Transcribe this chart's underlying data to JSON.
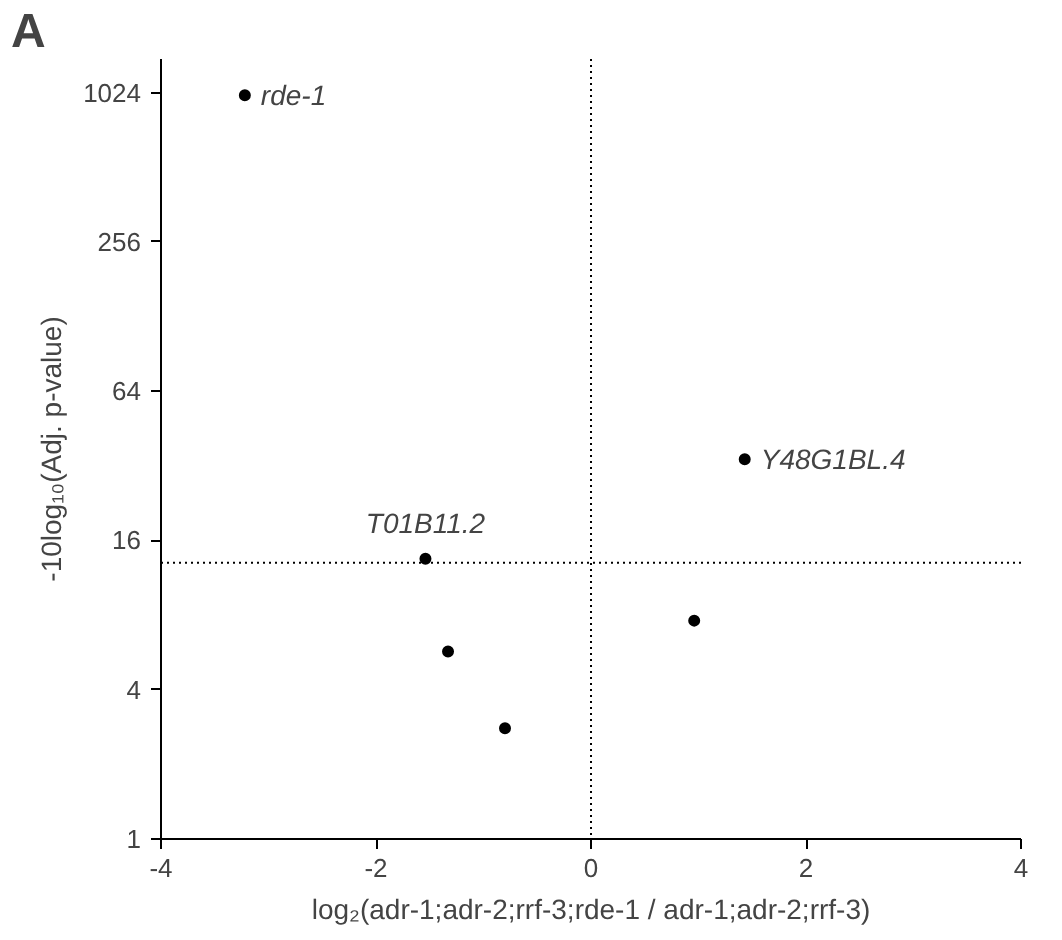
{
  "chart_data": {
    "type": "scatter",
    "xlabel": "log₂(adr-1;adr-2;rrf-3;rde-1 / adr-1;adr-2;rrf-3)",
    "ylabel": "-10log₁₀(Adj. p-value)",
    "x": [
      -3.22,
      1.43,
      -1.54,
      -1.33,
      -0.8,
      0.96
    ],
    "series": [
      {
        "color": "#000000",
        "values": [
          1000,
          34,
          13.5,
          5.7,
          2.8,
          7.6
        ]
      }
    ],
    "log": "y",
    "xlim": [
      -4,
      4
    ],
    "ylim": [
      1,
      1400
    ],
    "xticks": [
      -4,
      -2,
      0,
      2,
      4
    ],
    "yticks": [
      1,
      4,
      16,
      64,
      256,
      1024
    ],
    "grid": false,
    "marker": "circle",
    "ref_lines": [
      {
        "axis": "x",
        "value": 0,
        "line_style": "dotted"
      },
      {
        "axis": "y",
        "value": 13,
        "line_style": "dotted"
      }
    ],
    "annotations": [
      "A",
      {
        "text": "rde-1",
        "x": -3.22,
        "y": 1000
      },
      {
        "text": "Y48G1BL.4",
        "x": 1.43,
        "y": 34
      },
      {
        "text": "T01B11.2",
        "x": -1.54,
        "y": 13.5
      }
    ]
  }
}
